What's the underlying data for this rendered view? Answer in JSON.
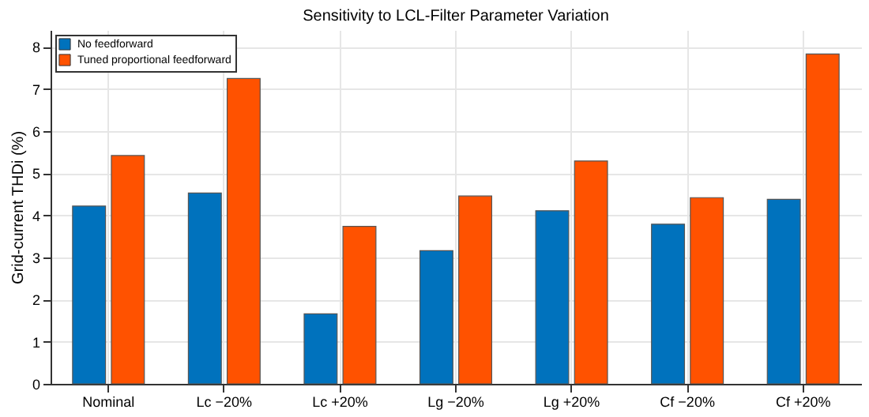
{
  "chart_data": {
    "type": "bar",
    "title": "Sensitivity to LCL-Filter Parameter Variation",
    "ylabel": "Grid-current THDi (%)",
    "categories": [
      "Nominal",
      "Lc −20%",
      "Lc +20%",
      "Lg −20%",
      "Lg +20%",
      "Cf −20%",
      "Cf +20%"
    ],
    "series": [
      {
        "name": "No feedforward",
        "color": "#0072bd",
        "values": [
          4.22,
          4.53,
          1.66,
          3.16,
          4.11,
          3.79,
          4.38
        ]
      },
      {
        "name": "Tuned proportional feedforward",
        "color": "#ff5200",
        "values": [
          5.42,
          7.25,
          3.74,
          4.46,
          5.29,
          4.42,
          7.83
        ]
      }
    ],
    "ylim": [
      0,
      8.4
    ],
    "yticks": [
      0,
      1,
      2,
      3,
      4,
      5,
      6,
      7,
      8
    ],
    "grid": true,
    "legend": "top left"
  }
}
